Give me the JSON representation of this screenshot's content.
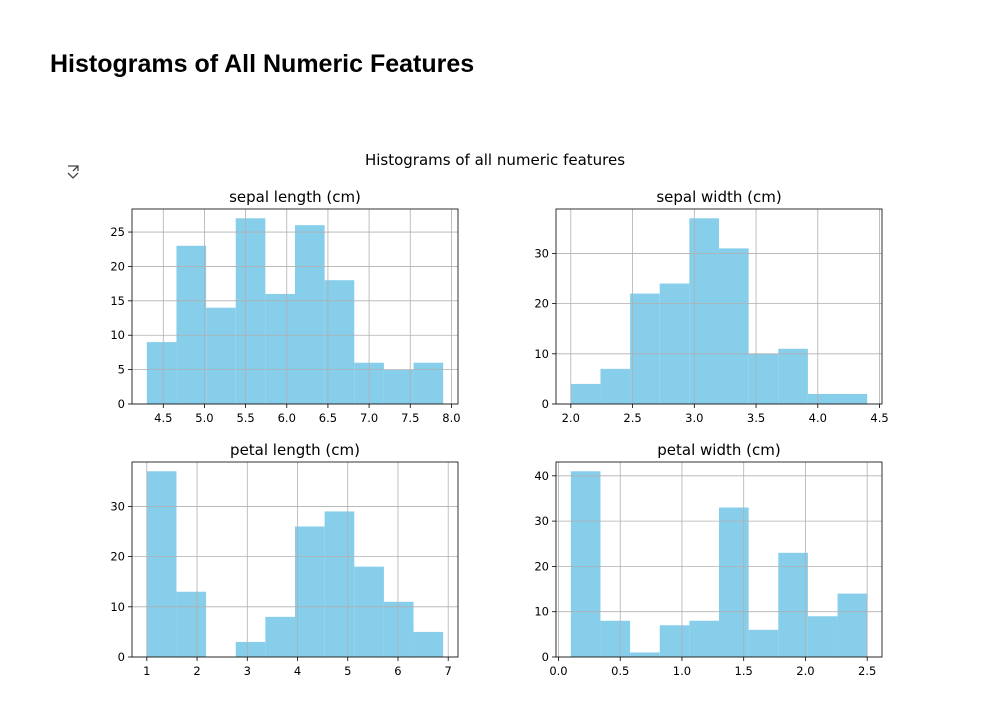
{
  "page": {
    "title": "Histograms of All Numeric Features"
  },
  "output_icon": "expand-output-icon",
  "chart_data": {
    "type": "bar",
    "title": "Histograms of all numeric features",
    "bar_color": "#87ceeb",
    "grid": true,
    "panels": [
      {
        "title": "sepal length (cm)",
        "bin_edges": [
          4.3,
          4.66,
          5.02,
          5.38,
          5.74,
          6.1,
          6.46,
          6.82,
          7.18,
          7.54,
          7.9
        ],
        "counts": [
          9,
          23,
          14,
          27,
          16,
          26,
          18,
          6,
          5,
          6
        ],
        "xlim": [
          4.12,
          8.08
        ],
        "ylim": [
          0,
          28.35
        ],
        "xticks": [
          4.5,
          5.0,
          5.5,
          6.0,
          6.5,
          7.0,
          7.5,
          8.0
        ],
        "xtick_labels": [
          "4.5",
          "5.0",
          "5.5",
          "6.0",
          "6.5",
          "7.0",
          "7.5",
          "8.0"
        ],
        "yticks": [
          0,
          5,
          10,
          15,
          20,
          25
        ],
        "ytick_labels": [
          "0",
          "5",
          "10",
          "15",
          "20",
          "25"
        ]
      },
      {
        "title": "sepal width (cm)",
        "bin_edges": [
          2.0,
          2.24,
          2.48,
          2.72,
          2.96,
          3.2,
          3.44,
          3.68,
          3.92,
          4.16,
          4.4
        ],
        "counts": [
          4,
          7,
          22,
          24,
          37,
          31,
          10,
          11,
          2,
          2
        ],
        "xlim": [
          1.88,
          4.52
        ],
        "ylim": [
          0,
          38.85
        ],
        "xticks": [
          2.0,
          2.5,
          3.0,
          3.5,
          4.0,
          4.5
        ],
        "xtick_labels": [
          "2.0",
          "2.5",
          "3.0",
          "3.5",
          "4.0",
          "4.5"
        ],
        "yticks": [
          0,
          10,
          20,
          30
        ],
        "ytick_labels": [
          "0",
          "10",
          "20",
          "30"
        ]
      },
      {
        "title": "petal length (cm)",
        "bin_edges": [
          1.0,
          1.59,
          2.18,
          2.77,
          3.36,
          3.95,
          4.54,
          5.13,
          5.72,
          6.31,
          6.9
        ],
        "counts": [
          37,
          13,
          0,
          3,
          8,
          26,
          29,
          18,
          11,
          5
        ],
        "xlim": [
          0.705,
          7.195
        ],
        "ylim": [
          0,
          38.85
        ],
        "xticks": [
          1,
          2,
          3,
          4,
          5,
          6,
          7
        ],
        "xtick_labels": [
          "1",
          "2",
          "3",
          "4",
          "5",
          "6",
          "7"
        ],
        "yticks": [
          0,
          10,
          20,
          30
        ],
        "ytick_labels": [
          "0",
          "10",
          "20",
          "30"
        ]
      },
      {
        "title": "petal width (cm)",
        "bin_edges": [
          0.1,
          0.34,
          0.58,
          0.82,
          1.06,
          1.3,
          1.54,
          1.78,
          2.02,
          2.26,
          2.5
        ],
        "counts": [
          41,
          8,
          1,
          7,
          8,
          33,
          6,
          23,
          9,
          14
        ],
        "xlim": [
          -0.02,
          2.62
        ],
        "ylim": [
          0,
          43.05
        ],
        "xticks": [
          0.0,
          0.5,
          1.0,
          1.5,
          2.0,
          2.5
        ],
        "xtick_labels": [
          "0.0",
          "0.5",
          "1.0",
          "1.5",
          "2.0",
          "2.5"
        ],
        "yticks": [
          0,
          10,
          20,
          30,
          40
        ],
        "ytick_labels": [
          "0",
          "10",
          "20",
          "30",
          "40"
        ]
      }
    ]
  }
}
